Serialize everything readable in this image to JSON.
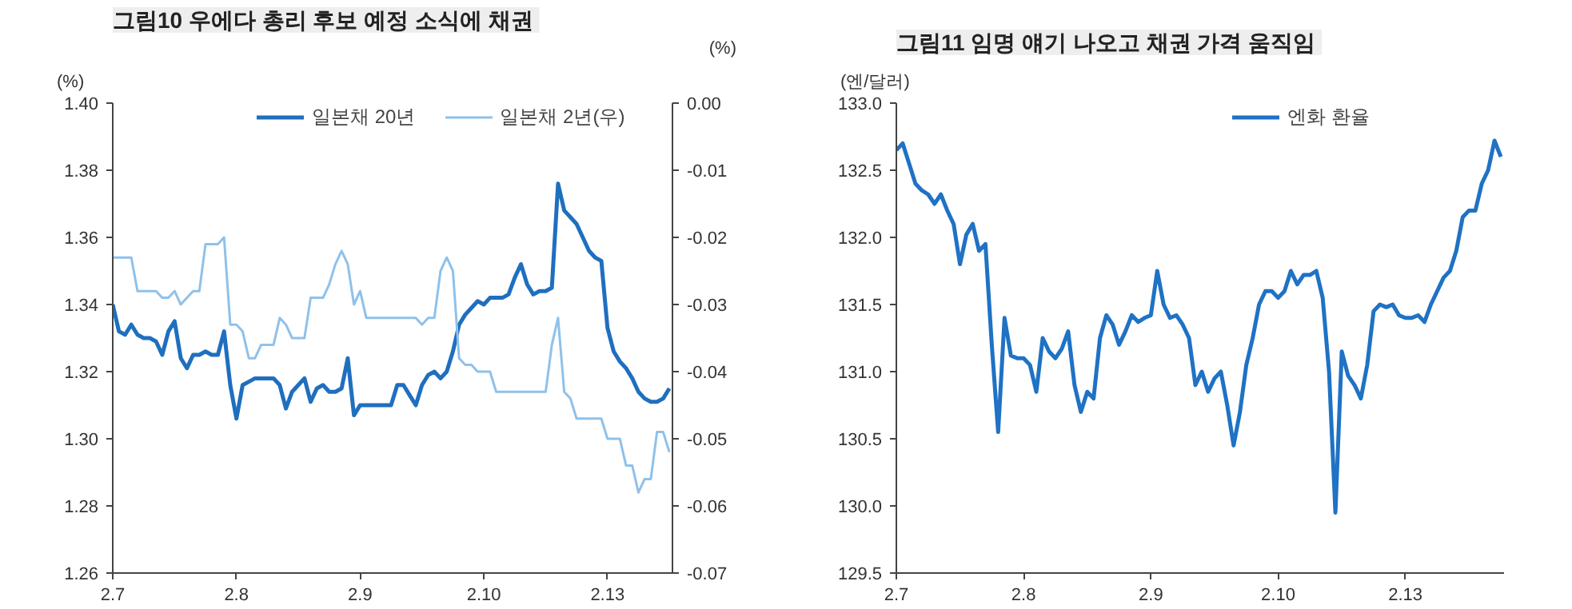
{
  "chart_data": [
    {
      "type": "line",
      "title": "그림10  우에다 총리 후보 예정 소식에 채권",
      "ylabel": "(%)",
      "y2label": "(%)",
      "legend": "top",
      "grid": false,
      "categories": [
        "2.7",
        null,
        null,
        null,
        null,
        null,
        null,
        null,
        null,
        null,
        null,
        null,
        null,
        null,
        null,
        null,
        null,
        null,
        null,
        null,
        "2.8",
        null,
        null,
        null,
        null,
        null,
        null,
        null,
        null,
        null,
        null,
        null,
        null,
        null,
        null,
        null,
        null,
        null,
        null,
        null,
        "2.9",
        null,
        null,
        null,
        null,
        null,
        null,
        null,
        null,
        null,
        null,
        null,
        null,
        null,
        null,
        null,
        null,
        null,
        null,
        null,
        "2.10",
        null,
        null,
        null,
        null,
        null,
        null,
        null,
        null,
        null,
        null,
        null,
        null,
        null,
        null,
        null,
        null,
        null,
        null,
        null,
        "2.13",
        null,
        null,
        null,
        null,
        null,
        null,
        null,
        null,
        null,
        null
      ],
      "ylim": [
        1.26,
        1.4
      ],
      "yticks": [
        {
          "value": 1.26,
          "label": "1.26"
        },
        {
          "value": 1.28,
          "label": "1.28"
        },
        {
          "value": 1.3,
          "label": "1.30"
        },
        {
          "value": 1.32,
          "label": "1.32"
        },
        {
          "value": 1.34,
          "label": "1.34"
        },
        {
          "value": 1.36,
          "label": "1.36"
        },
        {
          "value": 1.38,
          "label": "1.38"
        },
        {
          "value": 1.4,
          "label": "1.40"
        }
      ],
      "y2lim": [
        -0.07,
        0.0
      ],
      "y2ticks": [
        {
          "value": -0.07,
          "label": "-0.07"
        },
        {
          "value": -0.06,
          "label": "-0.06"
        },
        {
          "value": -0.05,
          "label": "-0.05"
        },
        {
          "value": -0.04,
          "label": "-0.04"
        },
        {
          "value": -0.03,
          "label": "-0.03"
        },
        {
          "value": -0.02,
          "label": "-0.02"
        },
        {
          "value": -0.01,
          "label": "-0.01"
        },
        {
          "value": 0.0,
          "label": "0.00"
        }
      ],
      "series": [
        {
          "name": "일본채 20년",
          "color": "#1f6fbf",
          "values": [
            1.34,
            1.332,
            1.331,
            1.334,
            1.331,
            1.33,
            1.33,
            1.329,
            1.325,
            1.332,
            1.335,
            1.324,
            1.321,
            1.325,
            1.325,
            1.326,
            1.325,
            1.325,
            1.332,
            1.316,
            1.306,
            1.316,
            1.317,
            1.318,
            1.318,
            1.318,
            1.318,
            1.316,
            1.309,
            1.314,
            1.316,
            1.318,
            1.311,
            1.315,
            1.316,
            1.314,
            1.314,
            1.315,
            1.324,
            1.307,
            1.31,
            1.31,
            1.31,
            1.31,
            1.31,
            1.31,
            1.316,
            1.316,
            1.313,
            1.31,
            1.316,
            1.319,
            1.32,
            1.318,
            1.32,
            1.326,
            1.334,
            1.337,
            1.339,
            1.341,
            1.34,
            1.342,
            1.342,
            1.342,
            1.343,
            1.348,
            1.352,
            1.346,
            1.343,
            1.344,
            1.344,
            1.345,
            1.376,
            1.368,
            1.366,
            1.364,
            1.36,
            1.356,
            1.354,
            1.353,
            1.333,
            1.326,
            1.323,
            1.321,
            1.318,
            1.314,
            1.312,
            1.311,
            1.311,
            1.312,
            1.315
          ]
        },
        {
          "name": "일본채 2년(우)",
          "color": "#8fc1ea",
          "axis": "y2",
          "values": [
            -0.023,
            -0.023,
            -0.023,
            -0.023,
            -0.028,
            -0.028,
            -0.028,
            -0.028,
            -0.029,
            -0.029,
            -0.028,
            -0.03,
            -0.029,
            -0.028,
            -0.028,
            -0.021,
            -0.021,
            -0.021,
            -0.02,
            -0.033,
            -0.033,
            -0.034,
            -0.038,
            -0.038,
            -0.036,
            -0.036,
            -0.036,
            -0.032,
            -0.033,
            -0.035,
            -0.035,
            -0.035,
            -0.029,
            -0.029,
            -0.029,
            -0.027,
            -0.024,
            -0.022,
            -0.024,
            -0.03,
            -0.028,
            -0.032,
            -0.032,
            -0.032,
            -0.032,
            -0.032,
            -0.032,
            -0.032,
            -0.032,
            -0.032,
            -0.033,
            -0.032,
            -0.032,
            -0.025,
            -0.023,
            -0.025,
            -0.038,
            -0.039,
            -0.039,
            -0.04,
            -0.04,
            -0.04,
            -0.043,
            -0.043,
            -0.043,
            -0.043,
            -0.043,
            -0.043,
            -0.043,
            -0.043,
            -0.043,
            -0.036,
            -0.032,
            -0.043,
            -0.044,
            -0.047,
            -0.047,
            -0.047,
            -0.047,
            -0.047,
            -0.05,
            -0.05,
            -0.05,
            -0.054,
            -0.054,
            -0.058,
            -0.056,
            -0.056,
            -0.049,
            -0.049,
            -0.052
          ]
        }
      ]
    },
    {
      "type": "line",
      "title": "그림11  임명 얘기 나오고 채권 가격 움직임",
      "ylabel": "(엔/달러)",
      "legend": "top",
      "grid": false,
      "categories": [
        "2.7",
        null,
        null,
        null,
        null,
        null,
        null,
        null,
        null,
        null,
        null,
        null,
        null,
        null,
        null,
        null,
        null,
        null,
        null,
        null,
        "2.8",
        null,
        null,
        null,
        null,
        null,
        null,
        null,
        null,
        null,
        null,
        null,
        null,
        null,
        null,
        null,
        null,
        null,
        null,
        null,
        "2.9",
        null,
        null,
        null,
        null,
        null,
        null,
        null,
        null,
        null,
        null,
        null,
        null,
        null,
        null,
        null,
        null,
        null,
        null,
        null,
        "2.10",
        null,
        null,
        null,
        null,
        null,
        null,
        null,
        null,
        null,
        null,
        null,
        null,
        null,
        null,
        null,
        null,
        null,
        null,
        null,
        "2.13",
        null,
        null,
        null,
        null,
        null,
        null,
        null,
        null,
        null,
        null,
        null,
        null,
        null,
        null,
        null
      ],
      "ylim": [
        129.5,
        133.0
      ],
      "yticks": [
        {
          "value": 129.5,
          "label": "129.5"
        },
        {
          "value": 130.0,
          "label": "130.0"
        },
        {
          "value": 130.5,
          "label": "130.5"
        },
        {
          "value": 131.0,
          "label": "131.0"
        },
        {
          "value": 131.5,
          "label": "131.5"
        },
        {
          "value": 132.0,
          "label": "132.0"
        },
        {
          "value": 132.5,
          "label": "132.5"
        },
        {
          "value": 133.0,
          "label": "133.0"
        }
      ],
      "series": [
        {
          "name": "엔화 환율",
          "color": "#1f72c4",
          "values": [
            132.65,
            132.7,
            132.55,
            132.4,
            132.35,
            132.32,
            132.25,
            132.32,
            132.2,
            132.1,
            131.8,
            132.02,
            132.1,
            131.9,
            131.95,
            131.2,
            130.55,
            131.4,
            131.12,
            131.1,
            131.1,
            131.05,
            130.85,
            131.25,
            131.15,
            131.1,
            131.17,
            131.3,
            130.9,
            130.7,
            130.85,
            130.8,
            131.25,
            131.42,
            131.35,
            131.2,
            131.3,
            131.42,
            131.37,
            131.4,
            131.42,
            131.75,
            131.5,
            131.4,
            131.42,
            131.35,
            131.25,
            130.9,
            131.0,
            130.85,
            130.95,
            131.0,
            130.75,
            130.45,
            130.7,
            131.05,
            131.25,
            131.5,
            131.6,
            131.6,
            131.55,
            131.6,
            131.75,
            131.65,
            131.72,
            131.72,
            131.75,
            131.55,
            131.0,
            129.95,
            131.15,
            130.97,
            130.9,
            130.8,
            131.05,
            131.45,
            131.5,
            131.48,
            131.5,
            131.42,
            131.4,
            131.4,
            131.42,
            131.37,
            131.5,
            131.6,
            131.7,
            131.75,
            131.9,
            132.15,
            132.2,
            132.2,
            132.4,
            132.5,
            132.72,
            132.6
          ]
        }
      ]
    }
  ]
}
